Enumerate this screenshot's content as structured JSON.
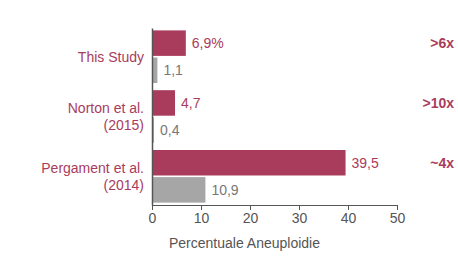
{
  "chart_data": {
    "type": "bar",
    "orientation": "horizontal",
    "categories": [
      "This Study",
      "Norton et al.\n(2015)",
      "Pergament et al.\n(2014)"
    ],
    "series": [
      {
        "color": "#a93c5c",
        "values": [
          6.9,
          4.7,
          39.5
        ],
        "value_labels": [
          "6,9%",
          "4,7",
          "39,5"
        ]
      },
      {
        "color": "#a6a6a6",
        "values": [
          1.1,
          0.4,
          10.9
        ],
        "value_labels": [
          "1,1",
          "0,4",
          "10,9"
        ]
      }
    ],
    "annotations": [
      ">6x",
      ">10x",
      "~4x"
    ],
    "xlabel": "Percentuale Aneuploidie",
    "xlim": [
      0,
      50
    ],
    "xticks": [
      0,
      10,
      20,
      30,
      40,
      50
    ],
    "data_labels": true,
    "grid": false
  }
}
